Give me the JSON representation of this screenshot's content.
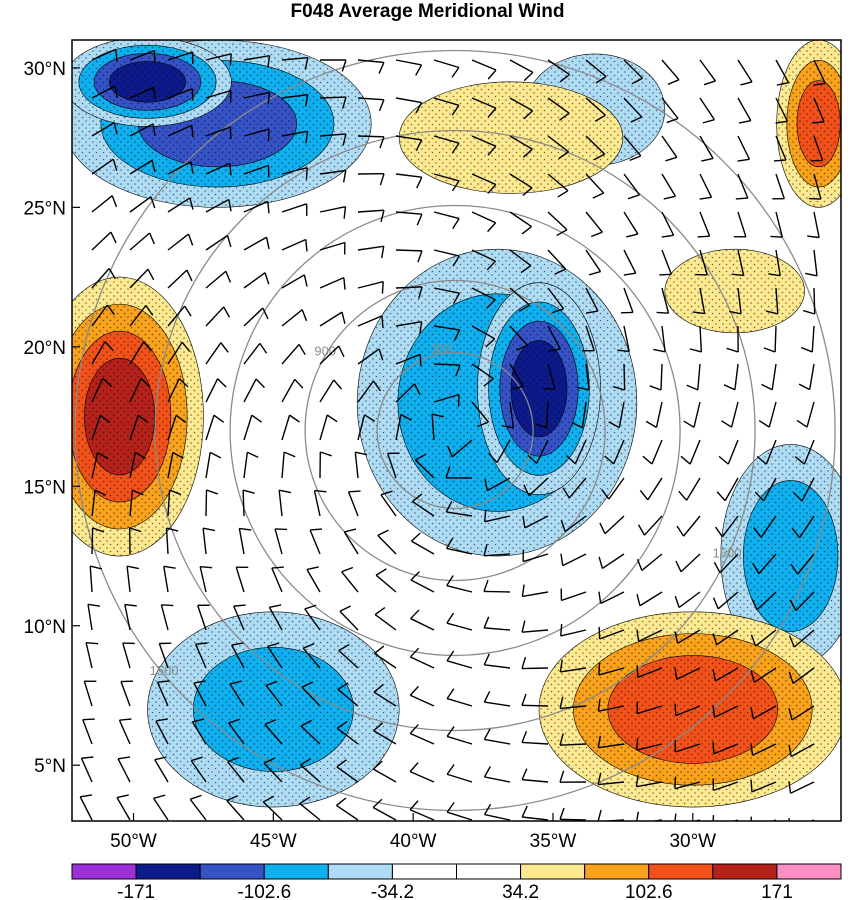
{
  "title": "F048 Average Meridional Wind",
  "chart_data": {
    "type": "heatmap",
    "title": "F048 Average Meridional Wind",
    "x_ticks": [
      "50°W",
      "45°W",
      "40°W",
      "35°W",
      "30°W"
    ],
    "x_tick_values": [
      -50,
      -45,
      -40,
      -35,
      -30
    ],
    "y_ticks": [
      "30°N",
      "25°N",
      "20°N",
      "15°N",
      "10°N",
      "5°N"
    ],
    "y_tick_values": [
      30,
      25,
      20,
      15,
      10,
      5
    ],
    "xlim": [
      -52.2,
      -24.7
    ],
    "ylim": [
      3.0,
      31.0
    ],
    "colorbar": {
      "labels": [
        "-171",
        "-102.6",
        "-34.2",
        "34.2",
        "102.6",
        "171"
      ],
      "levels": [
        -205.2,
        -171,
        -136.8,
        -102.6,
        -68.4,
        -34.2,
        0,
        34.2,
        68.4,
        102.6,
        136.8,
        171,
        205.2
      ],
      "colors": [
        "#9b30d8",
        "#0d1a8c",
        "#3553c6",
        "#0fb0ef",
        "#aedcf5",
        "#ffffff",
        "#ffffff",
        "#fde98f",
        "#f9a21c",
        "#f2521a",
        "#b5221c",
        "#fb8fc4"
      ]
    },
    "range_rings": {
      "labels": [
        "300",
        "900",
        "1500"
      ],
      "center": [
        -38.5,
        17.0
      ]
    },
    "fields": [
      {
        "name": "neg-nw",
        "lon": -47.0,
        "lat": 28.0,
        "value": -120,
        "rx": 5.5,
        "ry": 3.0
      },
      {
        "name": "neg-nw2",
        "lon": -49.5,
        "lat": 29.5,
        "value": -160,
        "rx": 3.0,
        "ry": 1.6
      },
      {
        "name": "neg-center",
        "lon": -35.5,
        "lat": 18.5,
        "value": -160,
        "rx": 2.2,
        "ry": 3.8
      },
      {
        "name": "neg-center-ring",
        "lon": -37.0,
        "lat": 18.0,
        "value": -100,
        "rx": 5.0,
        "ry": 5.5
      },
      {
        "name": "neg-sw",
        "lon": -45.0,
        "lat": 7.0,
        "value": -80,
        "rx": 4.5,
        "ry": 3.5
      },
      {
        "name": "neg-ne",
        "lon": -33.5,
        "lat": 28.5,
        "value": -60,
        "rx": 2.5,
        "ry": 2.0
      },
      {
        "name": "neg-e",
        "lon": -26.5,
        "lat": 12.5,
        "value": -90,
        "rx": 2.5,
        "ry": 4.0
      },
      {
        "name": "pos-w",
        "lon": -50.5,
        "lat": 17.5,
        "value": 150,
        "rx": 3.0,
        "ry": 5.0
      },
      {
        "name": "pos-se",
        "lon": -30.0,
        "lat": 7.0,
        "value": 130,
        "rx": 5.5,
        "ry": 3.5
      },
      {
        "name": "pos-ne",
        "lon": -25.5,
        "lat": 28.0,
        "value": 120,
        "rx": 1.5,
        "ry": 3.0
      },
      {
        "name": "pos-n",
        "lon": -36.5,
        "lat": 27.5,
        "value": 60,
        "rx": 4.0,
        "ry": 2.0
      },
      {
        "name": "pos-e",
        "lon": -28.5,
        "lat": 22.0,
        "value": 60,
        "rx": 2.5,
        "ry": 1.5
      },
      {
        "name": "pos-eye",
        "lon": -40.0,
        "lat": 17.2,
        "value": 40,
        "rx": 0.9,
        "ry": 0.9
      }
    ]
  }
}
